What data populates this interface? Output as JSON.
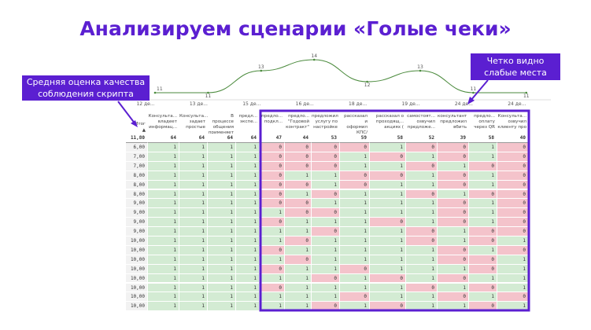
{
  "title": "Анализируем сценарии «Голые чеки»",
  "callouts": [
    "Средняя оценка качества соблюдения скрипта",
    "Четко видно слабые места"
  ],
  "chart_data": {
    "type": "line",
    "color": "#4a8a3c",
    "categories": [
      "12 де...",
      "13 де...",
      "15 де...",
      "16 де...",
      "18 де...",
      "19 де...",
      "24 де...",
      "24 де..."
    ],
    "values": [
      11,
      11,
      13,
      14,
      12,
      13,
      11,
      11
    ]
  },
  "table": {
    "header": [
      "Итог",
      "Консульта...\nвладеет\nинформац...",
      "Консульта...\nзадает\nпростые",
      "В процессе\nобщения\nприменяет",
      "предл...\nэкспе...",
      "предло...\nподкл...",
      "предло...\n\"Годовой\nконтракт\"",
      "предложил\nуслугу по\nнастройке",
      "рассказал и\nоформил\nКПС/предлж...",
      "рассказал о\nпроходящ...\nакциях (",
      "самостоят...\nозвучил\nпредложе...",
      "консультант\nпредложил\nвбить",
      "предло...\nоплату\nчерез QR",
      "Консульта...\nозвучил\nклиенту про"
    ],
    "totals": [
      "11,80",
      64,
      64,
      64,
      64,
      47,
      44,
      53,
      59,
      58,
      52,
      39,
      58,
      40
    ],
    "rows": [
      [
        "6,00",
        1,
        1,
        1,
        1,
        0,
        0,
        0,
        0,
        1,
        0,
        0,
        1,
        0
      ],
      [
        "7,00",
        1,
        1,
        1,
        1,
        0,
        0,
        0,
        1,
        0,
        1,
        0,
        1,
        0
      ],
      [
        "7,00",
        1,
        1,
        1,
        1,
        0,
        0,
        0,
        1,
        1,
        0,
        1,
        0,
        0
      ],
      [
        "8,00",
        1,
        1,
        1,
        1,
        0,
        1,
        1,
        0,
        0,
        1,
        0,
        1,
        0
      ],
      [
        "8,00",
        1,
        1,
        1,
        1,
        0,
        0,
        1,
        0,
        1,
        1,
        0,
        1,
        0
      ],
      [
        "8,00",
        1,
        1,
        1,
        1,
        0,
        1,
        0,
        1,
        1,
        0,
        1,
        0,
        0
      ],
      [
        "9,00",
        1,
        1,
        1,
        1,
        0,
        0,
        1,
        1,
        1,
        1,
        0,
        1,
        0
      ],
      [
        "9,00",
        1,
        1,
        1,
        1,
        1,
        0,
        0,
        1,
        1,
        1,
        0,
        1,
        0
      ],
      [
        "9,00",
        1,
        1,
        1,
        1,
        0,
        1,
        1,
        1,
        0,
        1,
        0,
        1,
        0
      ],
      [
        "9,00",
        1,
        1,
        1,
        1,
        1,
        1,
        0,
        1,
        1,
        0,
        1,
        0,
        0
      ],
      [
        "10,00",
        1,
        1,
        1,
        1,
        1,
        0,
        1,
        1,
        1,
        0,
        1,
        0,
        1
      ],
      [
        "10,00",
        1,
        1,
        1,
        1,
        0,
        1,
        1,
        1,
        1,
        1,
        0,
        1,
        0
      ],
      [
        "10,00",
        1,
        1,
        1,
        1,
        1,
        0,
        1,
        1,
        1,
        1,
        0,
        0,
        1
      ],
      [
        "10,00",
        1,
        1,
        1,
        1,
        0,
        1,
        1,
        0,
        1,
        1,
        1,
        0,
        1
      ],
      [
        "10,00",
        1,
        1,
        1,
        1,
        1,
        1,
        0,
        1,
        0,
        1,
        0,
        1,
        1
      ],
      [
        "10,00",
        1,
        1,
        1,
        1,
        0,
        1,
        1,
        1,
        1,
        0,
        1,
        0,
        1
      ],
      [
        "10,00",
        1,
        1,
        1,
        1,
        1,
        1,
        1,
        0,
        1,
        1,
        0,
        1,
        0
      ],
      [
        "10,00",
        1,
        1,
        1,
        1,
        1,
        1,
        0,
        1,
        0,
        1,
        1,
        0,
        1
      ]
    ]
  }
}
